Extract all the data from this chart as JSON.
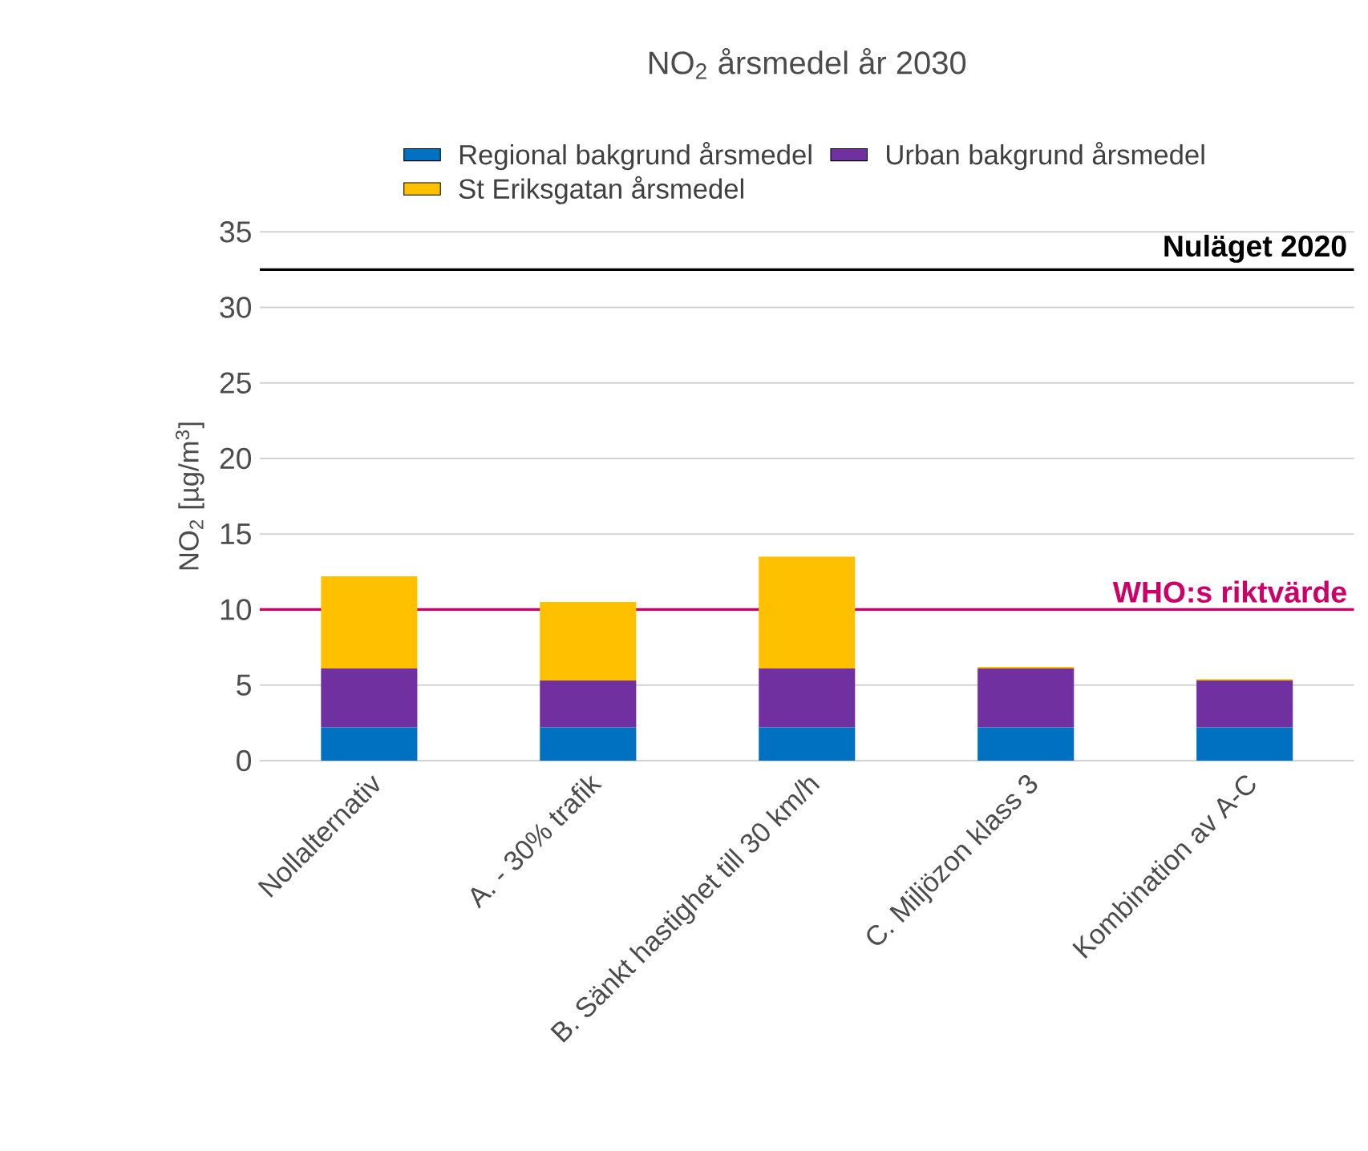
{
  "chart_data": {
    "type": "bar",
    "stacked": true,
    "title": "NO$_{2}$ årsmedel år 2030",
    "ylabel": "NO$_{2}$ [µg/m$^{3}$]",
    "categories": [
      "Nollalternativ",
      "A. - 30% trafik",
      "B. Sänkt hastighet till 30 km/h",
      "C. Miljözon klass 3",
      "Kombination av A-C"
    ],
    "series": [
      {
        "name": "Regional bakgrund årsmedel",
        "color": "#0070c0",
        "values": [
          2.2,
          2.2,
          2.2,
          2.2,
          2.2
        ]
      },
      {
        "name": "Urban bakgrund årsmedel",
        "color": "#7030a0",
        "values": [
          3.9,
          3.1,
          3.9,
          3.9,
          3.1
        ]
      },
      {
        "name": "St Eriksgatan årsmedel",
        "color": "#ffc000",
        "values": [
          6.1,
          5.2,
          7.4,
          0.1,
          0.1
        ]
      }
    ],
    "ylim": [
      0,
      35
    ],
    "yticks": [
      0,
      5,
      10,
      15,
      20,
      25,
      30,
      35
    ],
    "grid": "y",
    "legend": "top",
    "ref_lines": [
      {
        "axis": "y",
        "value": 32.5,
        "label": "Nuläget 2020",
        "color": "#000000"
      },
      {
        "axis": "y",
        "value": 10,
        "label": "WHO:s riktvärde",
        "color": "#cc0066"
      }
    ]
  }
}
